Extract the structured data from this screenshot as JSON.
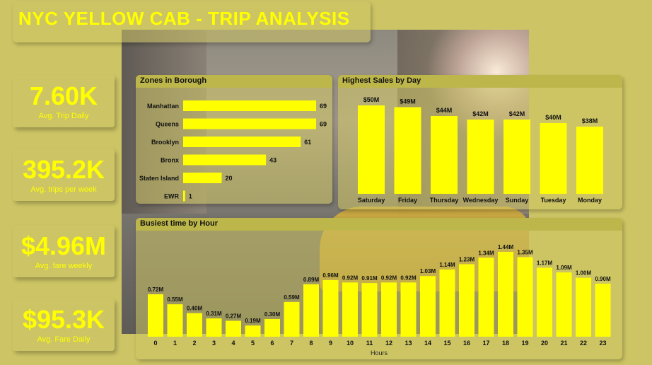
{
  "header": {
    "title": "NYC YELLOW CAB - TRIP ANALYSIS"
  },
  "colors": {
    "accent": "#ffff00",
    "panel": "#cdc565",
    "bar": "#ffff00"
  },
  "kpis": [
    {
      "value": "7.60K",
      "label": "Avg. Trip Daily"
    },
    {
      "value": "395.2K",
      "label": "Avg. trips per week"
    },
    {
      "value": "$4.96M",
      "label": "Avg. fare weekly"
    },
    {
      "value": "$95.3K",
      "label": "Avg. Fare Daily"
    }
  ],
  "panels": {
    "zones": {
      "title": "Zones in Borough"
    },
    "days": {
      "title": "Highest Sales by Day"
    },
    "hours": {
      "title": "Busiest time by Hour"
    }
  },
  "chart_data": [
    {
      "type": "bar",
      "orientation": "horizontal",
      "title": "Zones in Borough",
      "categories": [
        "Manhattan",
        "Queens",
        "Brooklyn",
        "Bronx",
        "Staten Island",
        "EWR"
      ],
      "values": [
        69,
        69,
        61,
        43,
        20,
        1
      ],
      "data_labels": [
        "69",
        "69",
        "61",
        "43",
        "20",
        "1"
      ],
      "xlim": [
        0,
        69
      ]
    },
    {
      "type": "bar",
      "title": "Highest Sales by Day",
      "categories": [
        "Saturday",
        "Friday",
        "Thursday",
        "Wednesday",
        "Sunday",
        "Tuesday",
        "Monday"
      ],
      "values": [
        50,
        49,
        44,
        42,
        42,
        40,
        38
      ],
      "data_labels": [
        "$50M",
        "$49M",
        "$44M",
        "$42M",
        "$42M",
        "$40M",
        "$38M"
      ],
      "ylim": [
        0,
        50
      ]
    },
    {
      "type": "bar",
      "title": "Busiest time by Hour",
      "xlabel": "Hours",
      "categories": [
        "0",
        "1",
        "2",
        "3",
        "4",
        "5",
        "6",
        "7",
        "8",
        "9",
        "10",
        "11",
        "12",
        "13",
        "14",
        "15",
        "16",
        "17",
        "18",
        "19",
        "20",
        "21",
        "22",
        "23"
      ],
      "values": [
        0.72,
        0.55,
        0.4,
        0.31,
        0.27,
        0.19,
        0.3,
        0.59,
        0.89,
        0.96,
        0.92,
        0.91,
        0.92,
        0.92,
        1.03,
        1.14,
        1.23,
        1.34,
        1.44,
        1.35,
        1.17,
        1.09,
        1.0,
        0.9
      ],
      "data_labels": [
        "0.72M",
        "0.55M",
        "0.40M",
        "0.31M",
        "0.27M",
        "0.19M",
        "0.30M",
        "0.59M",
        "0.89M",
        "0.96M",
        "0.92M",
        "0.91M",
        "0.92M",
        "0.92M",
        "1.03M",
        "1.14M",
        "1.23M",
        "1.34M",
        "1.44M",
        "1.35M",
        "1.17M",
        "1.09M",
        "1.00M",
        "0.90M"
      ],
      "ylim": [
        0,
        1.44
      ]
    }
  ]
}
